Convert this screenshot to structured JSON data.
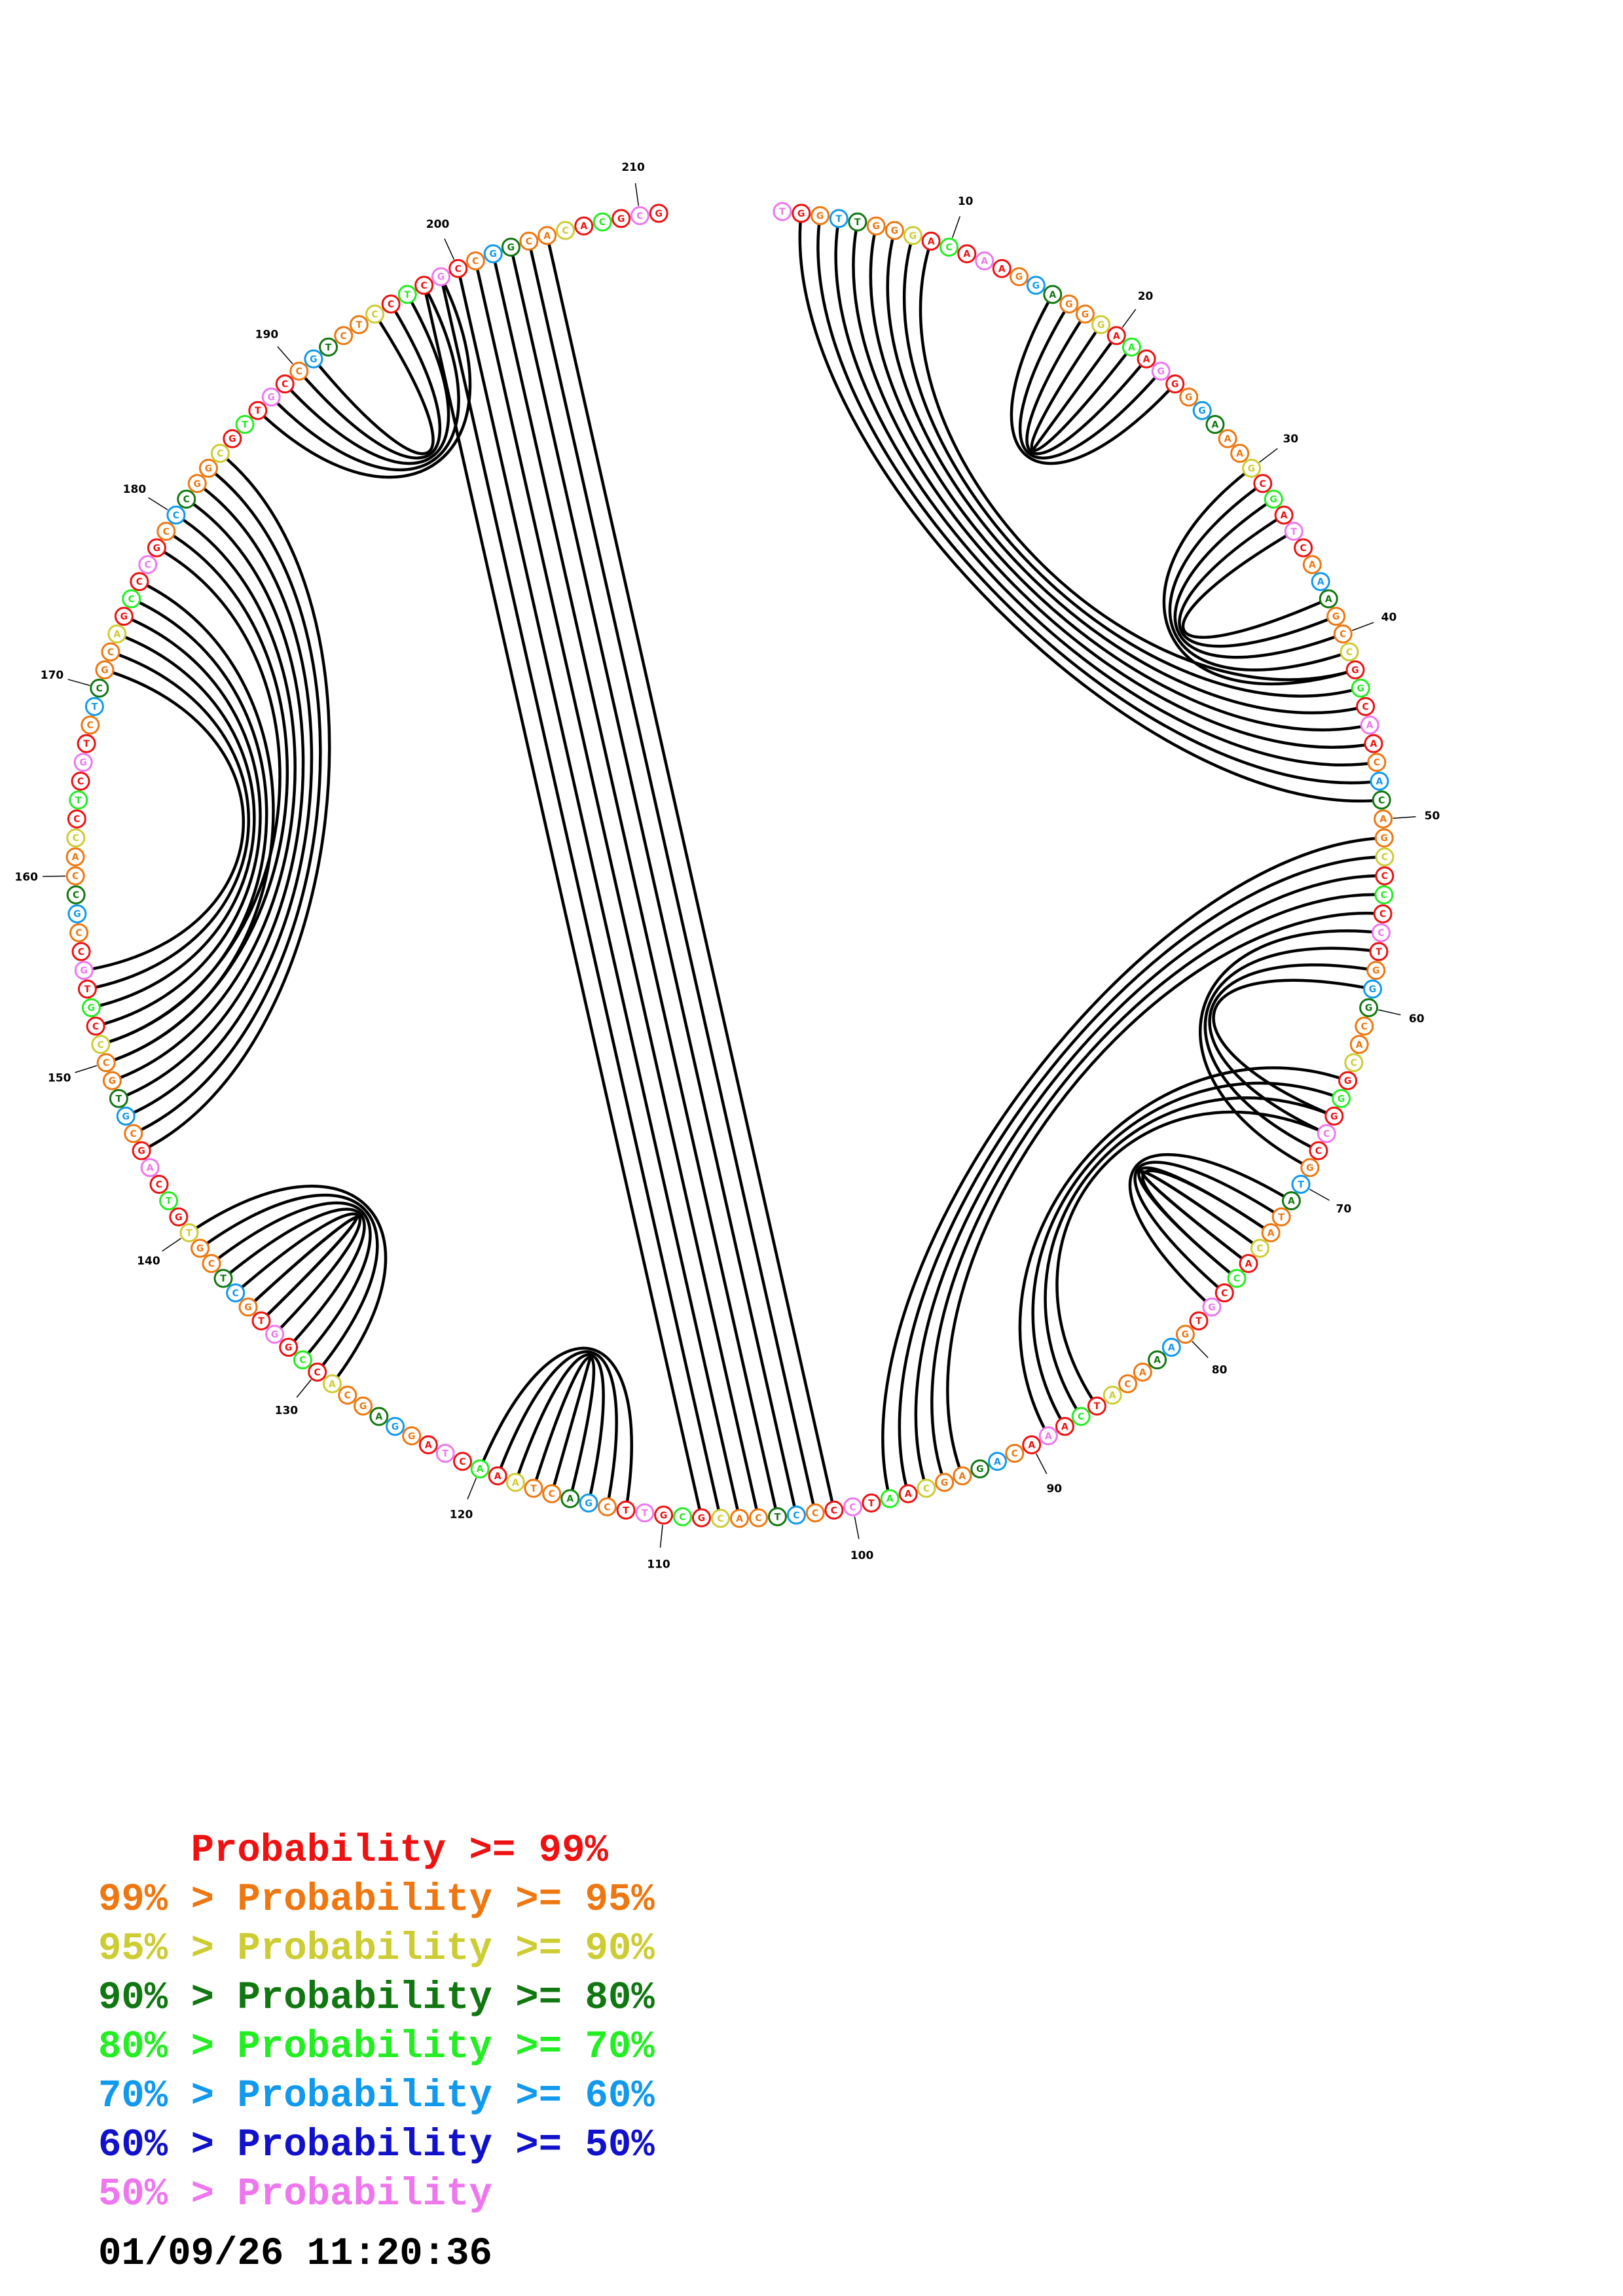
{
  "sequence_length": 211,
  "sequence": "TGGTTGGGACAAAGGAGGGAAAGGGGAAAGCGATCAAAGCCGGCAACACAGCCCCCTGGGCACGGGCCGTATACACCGTGAAACATCAAACAGAGCAATCCCCTCACGCGTTCGACTAAACTAGGAGCACCGGTGCTCGTGTCAGCGTGCCCGTGCCGCCACCTCGTCTCGCAGCCCGCCCGGCGTTGCCGTCTCCTCGCCGGCACACGCGCAC",
  "base_probability_classes": "",
  "position_labels": [
    "10",
    "20",
    "30",
    "40",
    "50",
    "60",
    "70",
    "80",
    "90",
    "100",
    "110",
    "120",
    "130",
    "140",
    "150",
    "160",
    "170",
    "180",
    "190",
    "200",
    "210"
  ],
  "helices": [
    {
      "i": 16,
      "j": 24,
      "len": 5
    },
    {
      "i": 30,
      "j": 42,
      "len": 5
    },
    {
      "i": 2,
      "j": 49,
      "len": 8
    },
    {
      "i": 51,
      "j": 98,
      "len": 5
    },
    {
      "i": 56,
      "j": 69,
      "len": 4
    },
    {
      "i": 64,
      "j": 89,
      "len": 4
    },
    {
      "i": 71,
      "j": 78,
      "len": 6
    },
    {
      "i": 101,
      "j": 205,
      "len": 8
    },
    {
      "i": 112,
      "j": 120,
      "len": 5
    },
    {
      "i": 129,
      "j": 140,
      "len": 7
    },
    {
      "i": 145,
      "j": 184,
      "len": 7
    },
    {
      "i": 150,
      "j": 176,
      "len": 6
    },
    {
      "i": 187,
      "j": 199,
      "len": 5
    }
  ],
  "colors": {
    "p99": "#ee1111",
    "p95": "#ee7711",
    "p90": "#cccc33",
    "p80": "#117711",
    "p70": "#22ee22",
    "p60": "#1199ee",
    "p50": "#1111cc",
    "plow": "#ee77ee",
    "arc": "#000000"
  },
  "legend": [
    {
      "prefix": "    ",
      "text": "Probability >= 99%",
      "color": "#ee1111"
    },
    {
      "prefix": "",
      "text": "99% > Probability >= 95%",
      "color": "#ee7711"
    },
    {
      "prefix": "",
      "text": "95% > Probability >= 90%",
      "color": "#cccc33"
    },
    {
      "prefix": "",
      "text": "90% > Probability >= 80%",
      "color": "#117711"
    },
    {
      "prefix": "",
      "text": "80% > Probability >= 70%",
      "color": "#22ee22"
    },
    {
      "prefix": "",
      "text": "70% > Probability >= 60%",
      "color": "#1199ee"
    },
    {
      "prefix": "",
      "text": "60% > Probability >= 50%",
      "color": "#1111cc"
    },
    {
      "prefix": "",
      "text": "50% > Probability",
      "color": "#ee77ee"
    }
  ],
  "timestamp": "01/09/26 11:20:36"
}
